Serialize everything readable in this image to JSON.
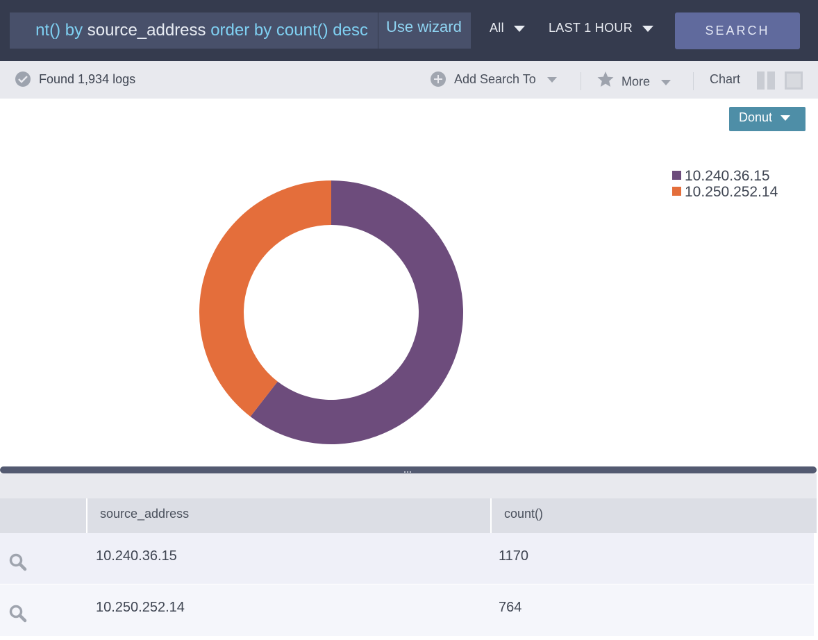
{
  "search": {
    "query_parts": [
      {
        "text": "nt()",
        "kind": "kw"
      },
      {
        "text": " by ",
        "kind": "kw"
      },
      {
        "text": "source_address ",
        "kind": "plain"
      },
      {
        "text": "order by ",
        "kind": "kw"
      },
      {
        "text": "count() ",
        "kind": "kw"
      },
      {
        "text": "desc",
        "kind": "kw"
      }
    ],
    "wizard_label": "Use wizard",
    "scope_label": "All",
    "time_label": "LAST 1 HOUR",
    "search_button": "SEARCH"
  },
  "toolbar": {
    "found_label": "Found 1,934 logs",
    "add_search_label": "Add Search To",
    "more_label": "More",
    "chart_label": "Chart"
  },
  "chart": {
    "type_selector": "Donut"
  },
  "chart_data": {
    "type": "pie",
    "variant": "donut",
    "categories": [
      "10.240.36.15",
      "10.250.252.14"
    ],
    "values": [
      1170,
      764
    ],
    "colors": [
      "#6d4c7c",
      "#e46e3b"
    ],
    "legend_position": "top-right"
  },
  "table": {
    "columns": [
      "source_address",
      "count()"
    ],
    "rows": [
      {
        "source_address": "10.240.36.15",
        "count": "1170"
      },
      {
        "source_address": "10.250.252.14",
        "count": "764"
      }
    ]
  },
  "colors": {
    "topbar": "#353b4e",
    "accent_button": "#606a9d",
    "donut_button": "#4e8ea7",
    "query_keyword": "#7fd0f2"
  }
}
